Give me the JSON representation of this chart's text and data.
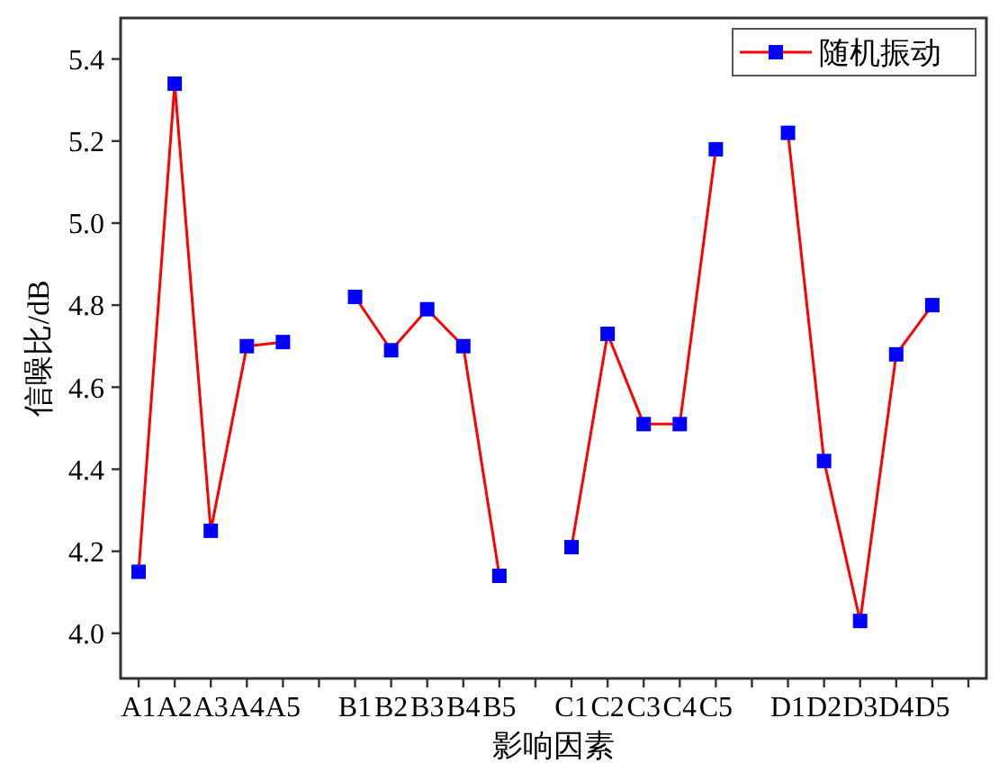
{
  "chart_data": {
    "type": "line",
    "xlabel": "影响因素",
    "ylabel": "信噪比/dB",
    "categories": [
      "A1",
      "A2",
      "A3",
      "A4",
      "A5",
      null,
      "B1",
      "B2",
      "B3",
      "B4",
      "B5",
      null,
      "C1",
      "C2",
      "C3",
      "C4",
      "C5",
      null,
      "D1",
      "D2",
      "D3",
      "D4",
      "D5",
      null
    ],
    "series": [
      {
        "name": "随机振动",
        "color": "#ff0000",
        "colors": [
          "#0000ff",
          "#0000ff",
          "#0000ff",
          "#0000ff",
          "#0000ff",
          null,
          "#0000ff",
          "#0000ff",
          "#0000ff",
          "#0000ff",
          "#0000ff",
          null,
          "#0000ff",
          "#0000ff",
          "#0000ff",
          "#0000ff",
          "#0000ff",
          null,
          "#0000ff",
          "#0000ff",
          "#0000ff",
          "#0000ff",
          "#0000ff",
          null
        ],
        "values": [
          4.15,
          5.34,
          4.25,
          4.7,
          4.71,
          null,
          4.82,
          4.69,
          4.79,
          4.7,
          4.14,
          null,
          4.21,
          4.73,
          4.51,
          4.51,
          5.18,
          null,
          5.22,
          4.42,
          4.03,
          4.68,
          4.8,
          null
        ]
      }
    ],
    "ylim": [
      3.89,
      5.5
    ],
    "yticks": [
      {
        "value": 4.0,
        "label": "4.0"
      },
      {
        "value": 4.2,
        "label": "4.2"
      },
      {
        "value": 4.4,
        "label": "4.4"
      },
      {
        "value": 4.6,
        "label": "4.6"
      },
      {
        "value": 4.8,
        "label": "4.8"
      },
      {
        "value": 5.0,
        "label": "5.0"
      },
      {
        "value": 5.2,
        "label": "5.2"
      },
      {
        "value": 5.4,
        "label": "5.4"
      }
    ],
    "marker": "square",
    "legend": "top right",
    "grid": false
  }
}
